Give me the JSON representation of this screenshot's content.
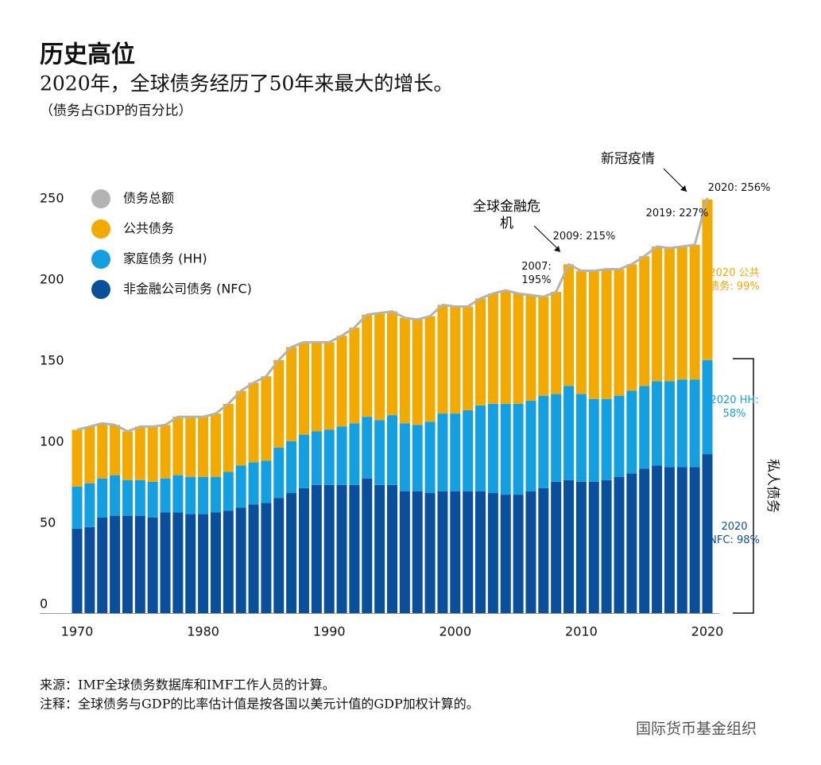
{
  "chart_data": {
    "type": "bar",
    "title": "历史高位",
    "subtitle": "2020年，全球债务经历了50年来最大的增长。",
    "unit_note": "（债务占GDP的百分比）",
    "x": [
      1970,
      1971,
      1972,
      1973,
      1974,
      1975,
      1976,
      1977,
      1978,
      1979,
      1980,
      1981,
      1982,
      1983,
      1984,
      1985,
      1986,
      1987,
      1988,
      1989,
      1990,
      1991,
      1992,
      1993,
      1994,
      1995,
      1996,
      1997,
      1998,
      1999,
      2000,
      2001,
      2002,
      2003,
      2004,
      2005,
      2006,
      2007,
      2008,
      2009,
      2010,
      2011,
      2012,
      2013,
      2014,
      2015,
      2016,
      2017,
      2018,
      2019,
      2020
    ],
    "series": [
      {
        "name": "债务总额",
        "type": "line",
        "color": "#b3b3b3",
        "values": [
          113,
          115,
          117,
          116,
          112,
          115,
          115,
          116,
          121,
          121,
          121,
          123,
          129,
          137,
          142,
          146,
          156,
          164,
          167,
          167,
          167,
          171,
          176,
          184,
          185,
          186,
          182,
          181,
          183,
          190,
          189,
          189,
          194,
          197,
          199,
          197,
          196,
          195,
          198,
          215,
          211,
          211,
          212,
          212,
          215,
          220,
          226,
          225,
          226,
          227,
          256
        ],
        "value_labels": [
          null,
          null,
          null,
          null,
          null,
          null,
          null,
          null,
          null,
          null,
          null,
          null,
          null,
          null,
          null,
          null,
          null,
          null,
          null,
          null,
          null,
          null,
          null,
          null,
          null,
          null,
          null,
          null,
          null,
          null,
          null,
          null,
          null,
          null,
          null,
          null,
          null,
          "2007: 195%",
          null,
          "2009: 215%",
          null,
          null,
          null,
          null,
          null,
          null,
          null,
          null,
          null,
          "2019: 227%",
          "2020: 256%"
        ]
      },
      {
        "name": "公共债务",
        "color": "#f2a900",
        "values": [
          35,
          35,
          34,
          31,
          30,
          33,
          34,
          33,
          36,
          37,
          37,
          39,
          42,
          46,
          49,
          52,
          54,
          58,
          57,
          55,
          54,
          56,
          59,
          63,
          66,
          64,
          65,
          65,
          65,
          67,
          66,
          64,
          66,
          68,
          70,
          68,
          65,
          61,
          63,
          75,
          76,
          79,
          80,
          78,
          78,
          80,
          83,
          82,
          82,
          83,
          99
        ],
        "value_labels": [
          null,
          null,
          null,
          null,
          null,
          null,
          null,
          null,
          null,
          null,
          null,
          null,
          null,
          null,
          null,
          null,
          null,
          null,
          null,
          null,
          null,
          null,
          null,
          null,
          null,
          null,
          null,
          null,
          null,
          null,
          null,
          null,
          null,
          null,
          null,
          null,
          null,
          null,
          null,
          null,
          null,
          null,
          null,
          null,
          null,
          null,
          null,
          null,
          null,
          null,
          "2020 公共债务: 99%"
        ]
      },
      {
        "name": "家庭债务 (HH)",
        "color": "#139fe0",
        "values": [
          26,
          27,
          24,
          25,
          22,
          22,
          22,
          21,
          23,
          23,
          23,
          22,
          24,
          26,
          26,
          26,
          31,
          32,
          33,
          33,
          34,
          36,
          38,
          38,
          40,
          43,
          42,
          41,
          44,
          48,
          48,
          50,
          53,
          55,
          56,
          56,
          56,
          57,
          54,
          58,
          54,
          51,
          50,
          50,
          51,
          51,
          52,
          53,
          54,
          54,
          58
        ],
        "value_labels": [
          null,
          null,
          null,
          null,
          null,
          null,
          null,
          null,
          null,
          null,
          null,
          null,
          null,
          null,
          null,
          null,
          null,
          null,
          null,
          null,
          null,
          null,
          null,
          null,
          null,
          null,
          null,
          null,
          null,
          null,
          null,
          null,
          null,
          null,
          null,
          null,
          null,
          null,
          null,
          null,
          null,
          null,
          null,
          null,
          null,
          null,
          null,
          null,
          null,
          null,
          "2020 HH: 58%"
        ]
      },
      {
        "name": "非金融公司债务 (NFC)",
        "color": "#0a4f9c",
        "values": [
          52,
          53,
          59,
          60,
          60,
          60,
          59,
          62,
          62,
          61,
          61,
          62,
          63,
          65,
          67,
          68,
          71,
          74,
          77,
          79,
          79,
          79,
          79,
          83,
          79,
          79,
          75,
          75,
          74,
          75,
          75,
          75,
          75,
          74,
          73,
          73,
          75,
          77,
          81,
          82,
          81,
          81,
          82,
          84,
          86,
          89,
          91,
          90,
          90,
          90,
          98
        ],
        "value_labels": [
          null,
          null,
          null,
          null,
          null,
          null,
          null,
          null,
          null,
          null,
          null,
          null,
          null,
          null,
          null,
          null,
          null,
          null,
          null,
          null,
          null,
          null,
          null,
          null,
          null,
          null,
          null,
          null,
          null,
          null,
          null,
          null,
          null,
          null,
          null,
          null,
          null,
          null,
          null,
          null,
          null,
          null,
          null,
          null,
          null,
          null,
          null,
          null,
          null,
          null,
          "2020 NFC: 98%"
        ]
      }
    ],
    "ylim": [
      0,
      250
    ],
    "yticks": [
      0,
      50,
      100,
      150,
      200,
      250
    ],
    "xticks": [
      1970,
      1980,
      1990,
      2000,
      2010,
      2020
    ],
    "grid": false,
    "legend": "upper left",
    "annotations": [
      "新冠疫情",
      "全球金融危机",
      "私人债务"
    ],
    "source": "来源：IMF全球债务数据库和IMF工作人员的计算。",
    "note": "注释：全球债务与GDP的比率估计值是按各国以美元计值的GDP加权计算的。",
    "watermark": "国际货币基金组织"
  }
}
